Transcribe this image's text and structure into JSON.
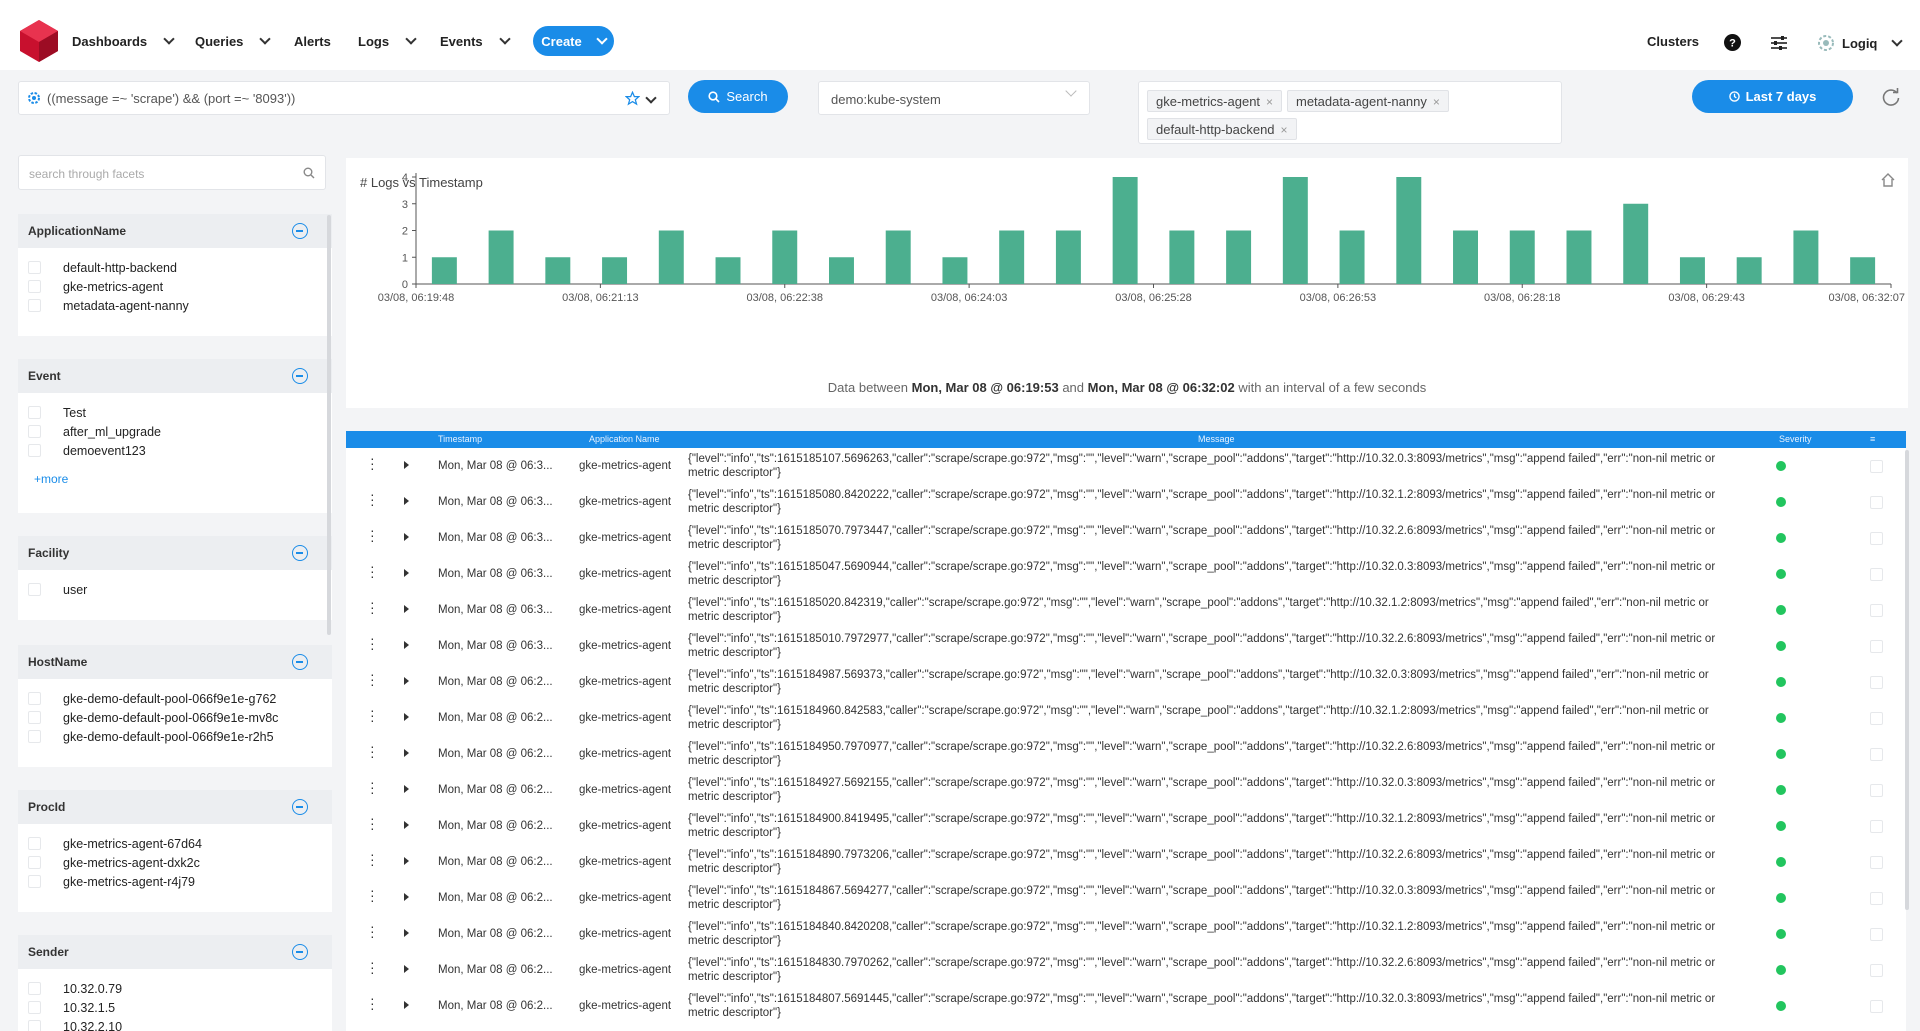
{
  "nav": {
    "items": [
      {
        "label": "Dashboards"
      },
      {
        "label": "Queries"
      },
      {
        "label": "Alerts"
      },
      {
        "label": "Logs"
      },
      {
        "label": "Events"
      }
    ],
    "create_label": "Create",
    "clusters_label": "Clusters",
    "user_label": "Logiq",
    "icons": [
      "help-icon",
      "sliders-icon",
      "user-gear-icon"
    ],
    "accent_color": "#1a8ce8"
  },
  "query": {
    "text": "((message =~ 'scrape') && (port =~ '8093'))",
    "search_label": "Search",
    "namespace": "demo:kube-system",
    "tags": [
      "gke-metrics-agent",
      "metadata-agent-nanny",
      "default-http-backend"
    ],
    "time_range_label": "Last 7 days"
  },
  "facets": {
    "search_placeholder": "search through facets",
    "more_label": "+more",
    "groups": [
      {
        "name": "ApplicationName",
        "items": [
          "default-http-backend",
          "gke-metrics-agent",
          "metadata-agent-nanny"
        ]
      },
      {
        "name": "Event",
        "items": [
          "Test",
          "after_ml_upgrade",
          "demoevent123"
        ]
      },
      {
        "name": "Facility",
        "items": [
          "user"
        ]
      },
      {
        "name": "HostName",
        "items": [
          "gke-demo-default-pool-066f9e1e-g762",
          "gke-demo-default-pool-066f9e1e-mv8c",
          "gke-demo-default-pool-066f9e1e-r2h5"
        ]
      },
      {
        "name": "ProcId",
        "items": [
          "gke-metrics-agent-67d64",
          "gke-metrics-agent-dxk2c",
          "gke-metrics-agent-r4j79"
        ]
      },
      {
        "name": "Sender",
        "items": [
          "10.32.0.79",
          "10.32.1.5",
          "10.32.2.10"
        ]
      }
    ]
  },
  "chart_data": {
    "type": "bar",
    "title": "# Logs vs Timestamp",
    "ylim": [
      0,
      4
    ],
    "yticks": [
      "0",
      "1",
      "2",
      "3",
      "4"
    ],
    "x_tick_labels": [
      "03/08, 06:19:48",
      "03/08, 06:21:13",
      "03/08, 06:22:38",
      "03/08, 06:24:03",
      "03/08, 06:25:28",
      "03/08, 06:26:53",
      "03/08, 06:28:18",
      "03/08, 06:29:43",
      "03/08, 06:32:07"
    ],
    "values": [
      1,
      2,
      1,
      1,
      2,
      1,
      2,
      1,
      2,
      1,
      2,
      2,
      4,
      2,
      2,
      4,
      2,
      4,
      2,
      2,
      2,
      3,
      1,
      1,
      2,
      1
    ],
    "bar_color": "#4caf8f",
    "footer_prefix": "Data between",
    "footer_start": "Mon, Mar 08 @ 06:19:53",
    "footer_mid": "and",
    "footer_end": "Mon, Mar 08 @ 06:32:02",
    "footer_suffix": "with an interval of a few seconds"
  },
  "table": {
    "headers": {
      "timestamp": "Timestamp",
      "app": "Application Name",
      "message": "Message",
      "severity": "Severity",
      "menu": "≡"
    },
    "severity_color": "#22c55e",
    "rows": [
      {
        "ts": "Mon, Mar 08 @ 06:3...",
        "app": "gke-metrics-agent",
        "msg": "{\"level\":\"info\",\"ts\":1615185107.5696263,\"caller\":\"scrape/scrape.go:972\",\"msg\":\"\",\"level\":\"warn\",\"scrape_pool\":\"addons\",\"target\":\"http://10.32.0.3:8093/metrics\",\"msg\":\"append failed\",\"err\":\"non-nil metric or metric descriptor\"}"
      },
      {
        "ts": "Mon, Mar 08 @ 06:3...",
        "app": "gke-metrics-agent",
        "msg": "{\"level\":\"info\",\"ts\":1615185080.8420222,\"caller\":\"scrape/scrape.go:972\",\"msg\":\"\",\"level\":\"warn\",\"scrape_pool\":\"addons\",\"target\":\"http://10.32.1.2:8093/metrics\",\"msg\":\"append failed\",\"err\":\"non-nil metric or metric descriptor\"}"
      },
      {
        "ts": "Mon, Mar 08 @ 06:3...",
        "app": "gke-metrics-agent",
        "msg": "{\"level\":\"info\",\"ts\":1615185070.7973447,\"caller\":\"scrape/scrape.go:972\",\"msg\":\"\",\"level\":\"warn\",\"scrape_pool\":\"addons\",\"target\":\"http://10.32.2.6:8093/metrics\",\"msg\":\"append failed\",\"err\":\"non-nil metric or metric descriptor\"}"
      },
      {
        "ts": "Mon, Mar 08 @ 06:3...",
        "app": "gke-metrics-agent",
        "msg": "{\"level\":\"info\",\"ts\":1615185047.5690944,\"caller\":\"scrape/scrape.go:972\",\"msg\":\"\",\"level\":\"warn\",\"scrape_pool\":\"addons\",\"target\":\"http://10.32.0.3:8093/metrics\",\"msg\":\"append failed\",\"err\":\"non-nil metric or metric descriptor\"}"
      },
      {
        "ts": "Mon, Mar 08 @ 06:3...",
        "app": "gke-metrics-agent",
        "msg": "{\"level\":\"info\",\"ts\":1615185020.842319,\"caller\":\"scrape/scrape.go:972\",\"msg\":\"\",\"level\":\"warn\",\"scrape_pool\":\"addons\",\"target\":\"http://10.32.1.2:8093/metrics\",\"msg\":\"append failed\",\"err\":\"non-nil metric or metric descriptor\"}"
      },
      {
        "ts": "Mon, Mar 08 @ 06:3...",
        "app": "gke-metrics-agent",
        "msg": "{\"level\":\"info\",\"ts\":1615185010.7972977,\"caller\":\"scrape/scrape.go:972\",\"msg\":\"\",\"level\":\"warn\",\"scrape_pool\":\"addons\",\"target\":\"http://10.32.2.6:8093/metrics\",\"msg\":\"append failed\",\"err\":\"non-nil metric or metric descriptor\"}"
      },
      {
        "ts": "Mon, Mar 08 @ 06:2...",
        "app": "gke-metrics-agent",
        "msg": "{\"level\":\"info\",\"ts\":1615184987.569373,\"caller\":\"scrape/scrape.go:972\",\"msg\":\"\",\"level\":\"warn\",\"scrape_pool\":\"addons\",\"target\":\"http://10.32.0.3:8093/metrics\",\"msg\":\"append failed\",\"err\":\"non-nil metric or metric descriptor\"}"
      },
      {
        "ts": "Mon, Mar 08 @ 06:2...",
        "app": "gke-metrics-agent",
        "msg": "{\"level\":\"info\",\"ts\":1615184960.842583,\"caller\":\"scrape/scrape.go:972\",\"msg\":\"\",\"level\":\"warn\",\"scrape_pool\":\"addons\",\"target\":\"http://10.32.1.2:8093/metrics\",\"msg\":\"append failed\",\"err\":\"non-nil metric or metric descriptor\"}"
      },
      {
        "ts": "Mon, Mar 08 @ 06:2...",
        "app": "gke-metrics-agent",
        "msg": "{\"level\":\"info\",\"ts\":1615184950.7970977,\"caller\":\"scrape/scrape.go:972\",\"msg\":\"\",\"level\":\"warn\",\"scrape_pool\":\"addons\",\"target\":\"http://10.32.2.6:8093/metrics\",\"msg\":\"append failed\",\"err\":\"non-nil metric or metric descriptor\"}"
      },
      {
        "ts": "Mon, Mar 08 @ 06:2...",
        "app": "gke-metrics-agent",
        "msg": "{\"level\":\"info\",\"ts\":1615184927.5692155,\"caller\":\"scrape/scrape.go:972\",\"msg\":\"\",\"level\":\"warn\",\"scrape_pool\":\"addons\",\"target\":\"http://10.32.0.3:8093/metrics\",\"msg\":\"append failed\",\"err\":\"non-nil metric or metric descriptor\"}"
      },
      {
        "ts": "Mon, Mar 08 @ 06:2...",
        "app": "gke-metrics-agent",
        "msg": "{\"level\":\"info\",\"ts\":1615184900.8419495,\"caller\":\"scrape/scrape.go:972\",\"msg\":\"\",\"level\":\"warn\",\"scrape_pool\":\"addons\",\"target\":\"http://10.32.1.2:8093/metrics\",\"msg\":\"append failed\",\"err\":\"non-nil metric or metric descriptor\"}"
      },
      {
        "ts": "Mon, Mar 08 @ 06:2...",
        "app": "gke-metrics-agent",
        "msg": "{\"level\":\"info\",\"ts\":1615184890.7973206,\"caller\":\"scrape/scrape.go:972\",\"msg\":\"\",\"level\":\"warn\",\"scrape_pool\":\"addons\",\"target\":\"http://10.32.2.6:8093/metrics\",\"msg\":\"append failed\",\"err\":\"non-nil metric or metric descriptor\"}"
      },
      {
        "ts": "Mon, Mar 08 @ 06:2...",
        "app": "gke-metrics-agent",
        "msg": "{\"level\":\"info\",\"ts\":1615184867.5694277,\"caller\":\"scrape/scrape.go:972\",\"msg\":\"\",\"level\":\"warn\",\"scrape_pool\":\"addons\",\"target\":\"http://10.32.0.3:8093/metrics\",\"msg\":\"append failed\",\"err\":\"non-nil metric or metric descriptor\"}"
      },
      {
        "ts": "Mon, Mar 08 @ 06:2...",
        "app": "gke-metrics-agent",
        "msg": "{\"level\":\"info\",\"ts\":1615184840.8420208,\"caller\":\"scrape/scrape.go:972\",\"msg\":\"\",\"level\":\"warn\",\"scrape_pool\":\"addons\",\"target\":\"http://10.32.1.2:8093/metrics\",\"msg\":\"append failed\",\"err\":\"non-nil metric or metric descriptor\"}"
      },
      {
        "ts": "Mon, Mar 08 @ 06:2...",
        "app": "gke-metrics-agent",
        "msg": "{\"level\":\"info\",\"ts\":1615184830.7970262,\"caller\":\"scrape/scrape.go:972\",\"msg\":\"\",\"level\":\"warn\",\"scrape_pool\":\"addons\",\"target\":\"http://10.32.2.6:8093/metrics\",\"msg\":\"append failed\",\"err\":\"non-nil metric or metric descriptor\"}"
      },
      {
        "ts": "Mon, Mar 08 @ 06:2...",
        "app": "gke-metrics-agent",
        "msg": "{\"level\":\"info\",\"ts\":1615184807.5691445,\"caller\":\"scrape/scrape.go:972\",\"msg\":\"\",\"level\":\"warn\",\"scrape_pool\":\"addons\",\"target\":\"http://10.32.0.3:8093/metrics\",\"msg\":\"append failed\",\"err\":\"non-nil metric or metric descriptor\"}"
      }
    ]
  }
}
